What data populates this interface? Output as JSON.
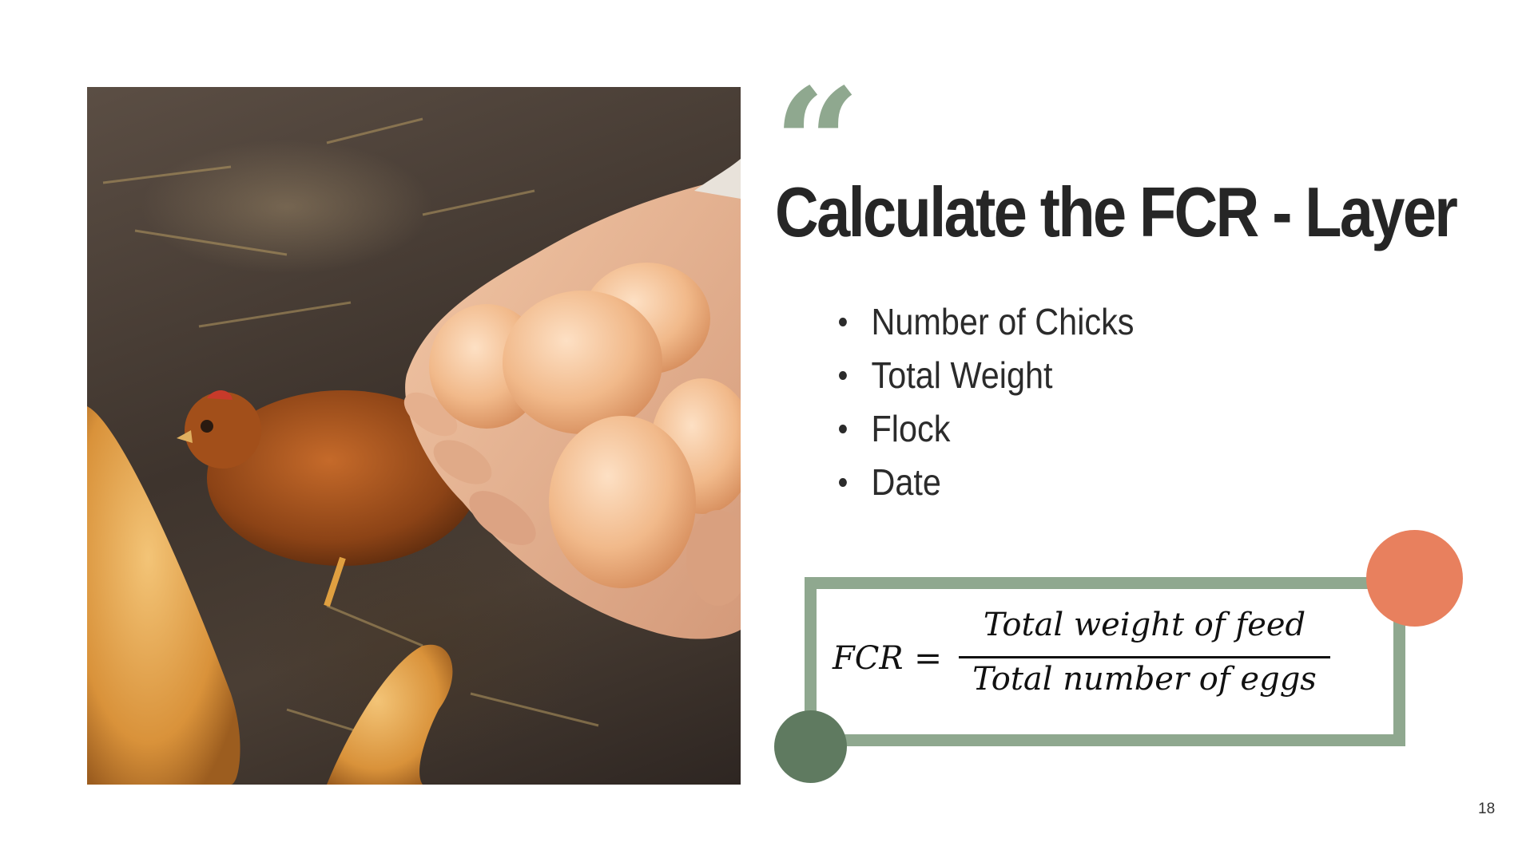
{
  "slide": {
    "title": "Calculate the FCR - Layer",
    "quote_mark": "“",
    "bullets": [
      "Number of Chicks",
      "Total Weight",
      "Flock",
      "Date"
    ],
    "formula": {
      "lhs": "FCR",
      "equals": "=",
      "numerator": "Total weight of feed",
      "denominator": "Total number of eggs"
    },
    "page_number": "18"
  },
  "colors": {
    "accent_green_light": "#8fa88f",
    "accent_green_dark": "#5f7a60",
    "accent_orange": "#e8805e",
    "title_text": "#262626"
  },
  "image": {
    "icon": "photo-hands-holding-eggs-with-hens"
  }
}
